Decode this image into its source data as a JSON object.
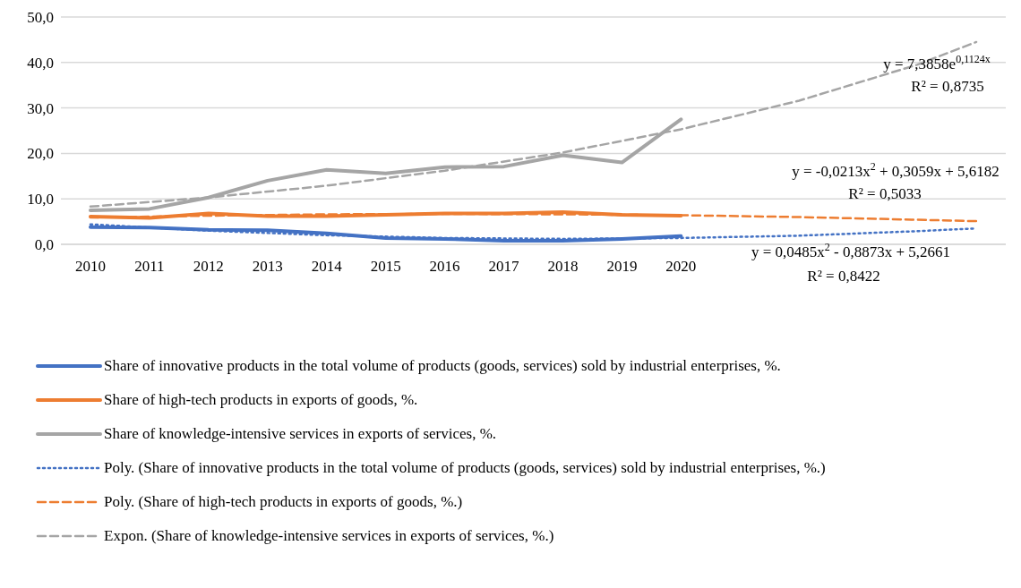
{
  "chart_data": {
    "type": "line",
    "x": [
      2010,
      2011,
      2012,
      2013,
      2014,
      2015,
      2016,
      2017,
      2018,
      2019,
      2020
    ],
    "xlim": [
      2009.5,
      2025.5
    ],
    "xticks": [
      2010,
      2011,
      2012,
      2013,
      2014,
      2015,
      2016,
      2017,
      2018,
      2019,
      2020
    ],
    "ylim": [
      0,
      50
    ],
    "yticks": [
      {
        "value": 0,
        "label": "0,0"
      },
      {
        "value": 10,
        "label": "10,0"
      },
      {
        "value": 20,
        "label": "20,0"
      },
      {
        "value": 30,
        "label": "30,0"
      },
      {
        "value": 40,
        "label": "40,0"
      },
      {
        "value": 50,
        "label": "50,0"
      }
    ],
    "grid": "y",
    "legend": "bottom",
    "marker": "none",
    "series": [
      {
        "name": "Share of innovative products in the total volume of products (goods, services) sold by industrial enterprises, %.",
        "color": "#4472c4",
        "line_style": "solid",
        "values": [
          3.8,
          3.7,
          3.2,
          3.1,
          2.4,
          1.4,
          1.2,
          0.8,
          0.8,
          1.2,
          1.8
        ]
      },
      {
        "name": "Share of high-tech products in exports of goods, %.",
        "color": "#ed7d31",
        "line_style": "solid",
        "values": [
          6.1,
          5.8,
          6.8,
          6.2,
          6.2,
          6.5,
          6.8,
          6.8,
          7.1,
          6.5,
          6.3
        ]
      },
      {
        "name": "Share of knowledge-intensive services in exports of services, %.",
        "color": "#a5a5a5",
        "line_style": "solid",
        "values": [
          7.5,
          7.8,
          10.3,
          14.0,
          16.4,
          15.6,
          17.0,
          17.1,
          19.6,
          18.0,
          27.5
        ]
      },
      {
        "name": "Poly. (Share of innovative products in the total volume of products (goods, services) sold by industrial enterprises, %.)",
        "color": "#4472c4",
        "line_style": "dotted",
        "x": [
          2010,
          2012,
          2014,
          2016,
          2018,
          2020,
          2022,
          2024,
          2025
        ],
        "values": [
          4.4,
          3.0,
          2.0,
          1.4,
          1.2,
          1.4,
          1.9,
          2.9,
          3.5
        ]
      },
      {
        "name": "Poly. (Share of high-tech products in exports of goods, %.)",
        "color": "#ed7d31",
        "line_style": "dashed",
        "x": [
          2010,
          2012,
          2014,
          2016,
          2018,
          2020,
          2022,
          2024,
          2025
        ],
        "values": [
          5.9,
          6.3,
          6.6,
          6.7,
          6.6,
          6.4,
          6.0,
          5.4,
          5.1
        ]
      },
      {
        "name": "Expon. (Share of knowledge-intensive services in exports of services, %.)",
        "color": "#a5a5a5",
        "line_style": "dashed",
        "x": [
          2010,
          2012,
          2014,
          2016,
          2018,
          2020,
          2022,
          2024,
          2025
        ],
        "values": [
          8.3,
          10.3,
          12.9,
          16.2,
          20.2,
          25.3,
          31.6,
          39.5,
          44.5
        ]
      }
    ],
    "annotations": [
      "y = 7,3858e$^{0,1124x}$",
      "R² = 0,8735",
      "y = -0,0213x$^{2}$ + 0,3059x + 5,6182",
      "R² = 0,5033",
      "y = 0,0485x$^{2}$ - 0,8873x + 5,2661",
      "R² = 0,8422"
    ]
  }
}
